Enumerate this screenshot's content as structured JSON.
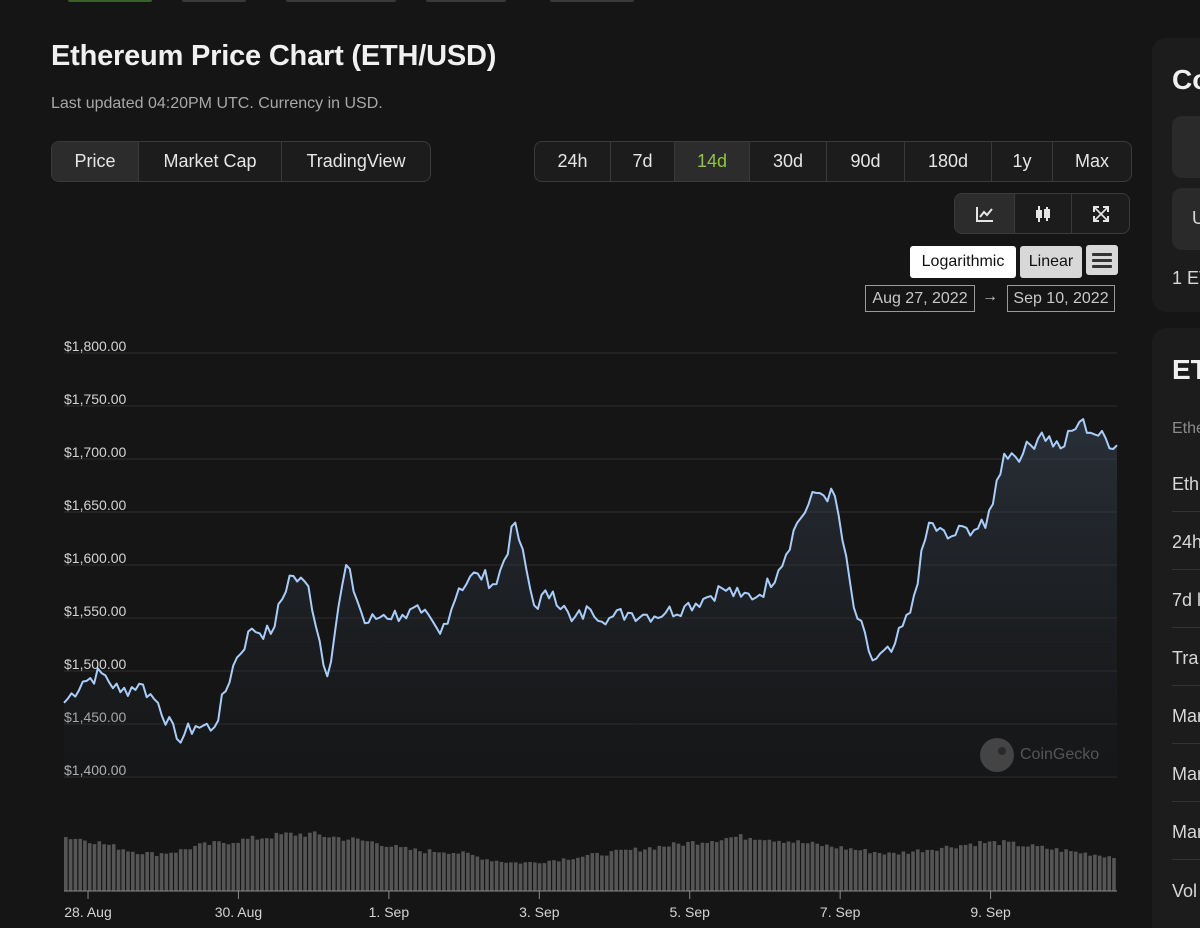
{
  "header": {
    "title": "Ethereum Price Chart (ETH/USD)",
    "subtitle": "Last updated 04:20PM UTC. Currency in USD."
  },
  "type_tabs": [
    "Price",
    "Market Cap",
    "TradingView"
  ],
  "range_tabs": [
    "24h",
    "7d",
    "14d",
    "30d",
    "90d",
    "180d",
    "1y",
    "Max"
  ],
  "range_active": "14d",
  "view_icons": [
    "line-chart-icon",
    "candlestick-icon",
    "fullscreen-icon"
  ],
  "scale": {
    "log_label": "Logarithmic",
    "linear_label": "Linear"
  },
  "date_range": {
    "from": "Aug 27, 2022",
    "arrow": "→",
    "to": "Sep 10, 2022"
  },
  "watermark": "CoinGecko",
  "colors": {
    "line": "#a9cdfb",
    "accent_green": "#8dc647",
    "volume": "#555555",
    "background": "#151515"
  },
  "side_panel": {
    "card1": {
      "title": "Co",
      "box_text": "U",
      "footer": "1 ET"
    },
    "card2": {
      "title": "ET",
      "subtitle": "Ethe",
      "rows": [
        "Eth",
        "24h",
        "7d l",
        "Tra",
        "Mar",
        "Mar",
        "Mar",
        "Vol"
      ]
    }
  },
  "chart_data": {
    "type": "line",
    "ylim": [
      1400,
      1800
    ],
    "y_ticks": [
      "$1,800.00",
      "$1,750.00",
      "$1,700.00",
      "$1,650.00",
      "$1,600.00",
      "$1,550.00",
      "$1,500.00",
      "$1,450.00",
      "$1,400.00"
    ],
    "x_ticks": [
      "28. Aug",
      "30. Aug",
      "1. Sep",
      "3. Sep",
      "5. Sep",
      "7. Sep",
      "9. Sep"
    ],
    "x_range": [
      "2022-08-27 16:20",
      "2022-09-10 16:20"
    ],
    "series": [
      {
        "x": [
          "2022-08-27 16:20",
          "2022-08-27 22:20",
          "2022-08-28 04:20",
          "2022-08-28 10:20",
          "2022-08-28 16:20",
          "2022-08-28 22:20",
          "2022-08-29 04:20",
          "2022-08-29 10:20",
          "2022-08-29 16:20",
          "2022-08-29 22:20",
          "2022-08-30 04:20",
          "2022-08-30 10:20",
          "2022-08-30 16:20",
          "2022-08-30 22:20",
          "2022-08-31 04:20",
          "2022-08-31 10:20",
          "2022-08-31 16:20",
          "2022-08-31 22:20",
          "2022-09-01 04:20",
          "2022-09-01 10:20",
          "2022-09-01 16:20",
          "2022-09-01 22:20",
          "2022-09-02 04:20",
          "2022-09-02 10:20",
          "2022-09-02 16:20",
          "2022-09-02 22:20",
          "2022-09-03 04:20",
          "2022-09-03 10:20",
          "2022-09-03 16:20",
          "2022-09-03 22:20",
          "2022-09-04 04:20",
          "2022-09-04 10:20",
          "2022-09-04 16:20",
          "2022-09-04 22:20",
          "2022-09-05 04:20",
          "2022-09-05 10:20",
          "2022-09-05 16:20",
          "2022-09-05 22:20",
          "2022-09-06 04:20",
          "2022-09-06 10:20",
          "2022-09-06 16:20",
          "2022-09-06 22:20",
          "2022-09-07 04:20",
          "2022-09-07 10:20",
          "2022-09-07 16:20",
          "2022-09-07 22:20",
          "2022-09-08 04:20",
          "2022-09-08 10:20",
          "2022-09-08 16:20",
          "2022-09-08 22:20",
          "2022-09-09 04:20",
          "2022-09-09 10:20",
          "2022-09-09 16:20",
          "2022-09-09 22:20",
          "2022-09-10 04:20",
          "2022-09-10 10:20",
          "2022-09-10 16:20"
        ],
        "values": [
          1470,
          1490,
          1498,
          1480,
          1488,
          1470,
          1436,
          1448,
          1447,
          1505,
          1540,
          1535,
          1590,
          1580,
          1495,
          1600,
          1545,
          1553,
          1553,
          1555,
          1535,
          1578,
          1592,
          1582,
          1640,
          1562,
          1575,
          1547,
          1558,
          1550,
          1555,
          1553,
          1555,
          1561,
          1568,
          1578,
          1570,
          1572,
          1595,
          1640,
          1668,
          1665,
          1560,
          1510,
          1518,
          1555,
          1640,
          1625,
          1635,
          1635,
          1705,
          1705,
          1725,
          1710,
          1735,
          1722,
          1713
        ]
      }
    ],
    "volume": {
      "note": "relative bar heights",
      "values": [
        0.95,
        0.9,
        0.8,
        0.7,
        0.65,
        0.7,
        0.8,
        0.85,
        0.9,
        0.95,
        1.0,
        1.0,
        0.95,
        0.9,
        0.85,
        0.75,
        0.7,
        0.7,
        0.65,
        0.55,
        0.5,
        0.5,
        0.55,
        0.6,
        0.65,
        0.7,
        0.75,
        0.8,
        0.85,
        0.9,
        0.95,
        0.95,
        0.9,
        0.85,
        0.8,
        0.75,
        0.7,
        0.65,
        0.7,
        0.75,
        0.8,
        0.85,
        0.85,
        0.8,
        0.75,
        0.7,
        0.65,
        0.6
      ]
    }
  }
}
